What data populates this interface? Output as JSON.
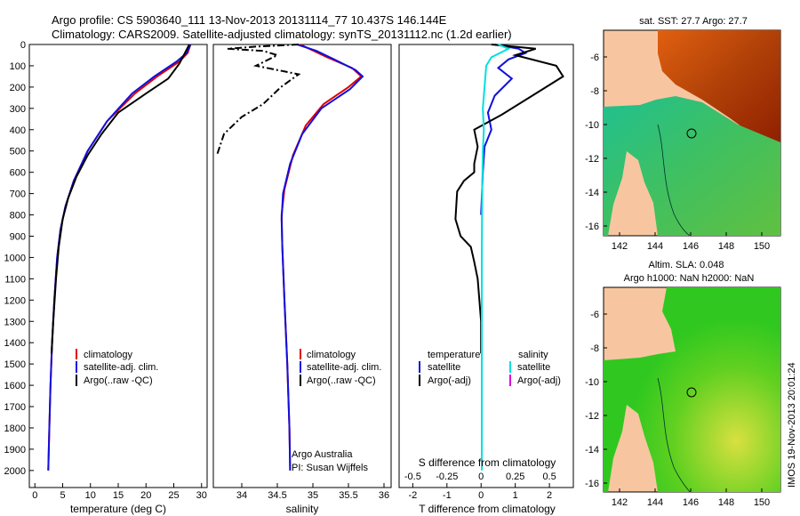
{
  "header": {
    "line1": "Argo profile: CS 5903640_111 13-Nov-2013 20131114_77 10.437S 146.144E",
    "line2": "Climatology: CARS2009. Satellite-adjusted climatology: synTS_20131112.nc (1.2d earlier)"
  },
  "colors": {
    "climatology": "#e00000",
    "satellite": "#1010e0",
    "argo": "#000000",
    "salinity_sat": "#00e0e0",
    "salinity_argo": "#e000e0"
  },
  "depth_axis": {
    "ticks": [
      0,
      100,
      200,
      300,
      400,
      500,
      600,
      700,
      800,
      900,
      1000,
      1100,
      1200,
      1300,
      1400,
      1500,
      1600,
      1700,
      1800,
      1900,
      2000
    ]
  },
  "chart_data": [
    {
      "type": "line",
      "panel": "temperature",
      "xlabel": "temperature (deg C)",
      "xlim": [
        -1,
        31
      ],
      "ylim": [
        0,
        2080
      ],
      "xticks": [
        0,
        5,
        10,
        15,
        20,
        25,
        30
      ],
      "legend": [
        "climatology",
        "satellite-adj. clim.",
        "Argo(..raw -QC)"
      ],
      "series": [
        {
          "name": "climatology",
          "color": "#e00000",
          "points": [
            [
              28,
              0
            ],
            [
              27.5,
              40
            ],
            [
              26,
              80
            ],
            [
              22,
              150
            ],
            [
              18,
              230
            ],
            [
              13,
              360
            ],
            [
              9.5,
              500
            ],
            [
              7,
              640
            ],
            [
              5.5,
              760
            ],
            [
              4.6,
              870
            ],
            [
              4,
              1000
            ],
            [
              3.5,
              1200
            ],
            [
              3.1,
              1400
            ],
            [
              2.8,
              1600
            ],
            [
              2.6,
              1800
            ],
            [
              2.4,
              2000
            ]
          ]
        },
        {
          "name": "satellite-adj. clim.",
          "color": "#1010e0",
          "points": [
            [
              28,
              0
            ],
            [
              27.3,
              40
            ],
            [
              25.5,
              80
            ],
            [
              21.5,
              150
            ],
            [
              17.5,
              230
            ],
            [
              13,
              360
            ],
            [
              9.5,
              500
            ],
            [
              7,
              640
            ],
            [
              5.5,
              760
            ],
            [
              4.6,
              870
            ],
            [
              4,
              1000
            ],
            [
              3.5,
              1200
            ],
            [
              3.1,
              1400
            ],
            [
              2.8,
              1600
            ],
            [
              2.6,
              1800
            ],
            [
              2.4,
              2000
            ]
          ]
        },
        {
          "name": "Argo(..raw -QC)",
          "color": "#000000",
          "points": [
            [
              27.8,
              0
            ],
            [
              27,
              40
            ],
            [
              26,
              90
            ],
            [
              24,
              160
            ],
            [
              20,
              230
            ],
            [
              15,
              320
            ],
            [
              12,
              420
            ],
            [
              9.5,
              520
            ],
            [
              7.5,
              620
            ],
            [
              6,
              720
            ],
            [
              5,
              820
            ],
            [
              4.3,
              950
            ],
            [
              3.8,
              1100
            ],
            [
              3.3,
              1300
            ],
            [
              3,
              1450
            ]
          ]
        }
      ]
    },
    {
      "type": "line",
      "panel": "salinity",
      "xlabel": "salinity",
      "xlim": [
        33.6,
        36.1
      ],
      "ylim": [
        0,
        2080
      ],
      "xticks": [
        34,
        34.5,
        35,
        35.5,
        36
      ],
      "legend": [
        "climatology",
        "satellite-adj. clim.",
        "Argo(..raw -QC)"
      ],
      "annotation": [
        "Argo Australia",
        "PI: Susan Wijffels"
      ],
      "series": [
        {
          "name": "climatology",
          "color": "#e00000",
          "points": [
            [
              34.82,
              0
            ],
            [
              34.95,
              20
            ],
            [
              35.2,
              60
            ],
            [
              35.55,
              110
            ],
            [
              35.68,
              150
            ],
            [
              35.5,
              200
            ],
            [
              35.15,
              280
            ],
            [
              34.9,
              380
            ],
            [
              34.72,
              520
            ],
            [
              34.6,
              680
            ],
            [
              34.56,
              800
            ],
            [
              34.57,
              950
            ],
            [
              34.6,
              1200
            ],
            [
              34.64,
              1500
            ],
            [
              34.67,
              1800
            ],
            [
              34.68,
              2000
            ]
          ]
        },
        {
          "name": "satellite-adj. clim.",
          "color": "#1010e0",
          "points": [
            [
              34.78,
              0
            ],
            [
              35.05,
              30
            ],
            [
              35.3,
              70
            ],
            [
              35.6,
              120
            ],
            [
              35.7,
              150
            ],
            [
              35.52,
              210
            ],
            [
              35.12,
              300
            ],
            [
              34.85,
              420
            ],
            [
              34.68,
              560
            ],
            [
              34.58,
              700
            ],
            [
              34.56,
              820
            ],
            [
              34.57,
              950
            ],
            [
              34.6,
              1200
            ],
            [
              34.64,
              1500
            ],
            [
              34.67,
              1800
            ],
            [
              34.68,
              2000
            ]
          ]
        },
        {
          "name": "Argo(..raw -QC)",
          "color": "#000000",
          "dashed": true,
          "points": [
            [
              34.8,
              0
            ],
            [
              34.2,
              10
            ],
            [
              33.8,
              20
            ],
            [
              34.3,
              30
            ],
            [
              34.5,
              50
            ],
            [
              34.2,
              100
            ],
            [
              34.8,
              140
            ],
            [
              34.55,
              200
            ],
            [
              34.3,
              280
            ],
            [
              34.0,
              340
            ],
            [
              33.75,
              420
            ],
            [
              33.65,
              520
            ]
          ]
        }
      ]
    },
    {
      "type": "line",
      "panel": "difference",
      "xlabel": "T difference from climatology",
      "x2label": "S difference from climatology",
      "xlim": [
        -2.4,
        2.7
      ],
      "ylim": [
        0,
        2080
      ],
      "xticks": [
        -2,
        -1,
        0,
        1,
        2
      ],
      "x2ticks": [
        {
          "label": "-0.5",
          "t": -2
        },
        {
          "label": "-0.25",
          "t": -1
        },
        {
          "label": "0",
          "t": 0
        },
        {
          "label": "0.25",
          "t": 1
        },
        {
          "label": "0.5",
          "t": 2
        }
      ],
      "legend": {
        "temperature": [
          "satellite",
          "Argo(-adj)"
        ],
        "salinity": [
          "satellite",
          "Argo(-adj)"
        ]
      },
      "series": [
        {
          "name": "temperature satellite",
          "color": "#1010e0",
          "points": [
            [
              0.4,
              0
            ],
            [
              1.1,
              20
            ],
            [
              1.3,
              40
            ],
            [
              0.8,
              70
            ],
            [
              0.5,
              110
            ],
            [
              0.9,
              160
            ],
            [
              0.4,
              240
            ],
            [
              0.2,
              320
            ],
            [
              0.3,
              400
            ],
            [
              0.1,
              480
            ],
            [
              0.05,
              600
            ],
            [
              0,
              800
            ]
          ]
        },
        {
          "name": "temperature Argo(-adj)",
          "color": "#000000",
          "points": [
            [
              0.3,
              0
            ],
            [
              1.6,
              20
            ],
            [
              1.0,
              50
            ],
            [
              2.2,
              100
            ],
            [
              2.4,
              150
            ],
            [
              1.6,
              230
            ],
            [
              0.6,
              330
            ],
            [
              -0.2,
              400
            ],
            [
              -0.1,
              480
            ],
            [
              -0.2,
              560
            ],
            [
              -0.2,
              600
            ],
            [
              -0.5,
              640
            ],
            [
              -0.7,
              690
            ],
            [
              -0.75,
              820
            ],
            [
              -0.6,
              900
            ],
            [
              -0.3,
              950
            ],
            [
              -0.2,
              1020
            ],
            [
              -0.1,
              1100
            ],
            [
              -0.05,
              1200
            ],
            [
              0,
              1300
            ],
            [
              0,
              1450
            ]
          ]
        },
        {
          "name": "salinity satellite",
          "color": "#00e0e0",
          "points": [
            [
              0.5,
              0
            ],
            [
              0.8,
              20
            ],
            [
              0.3,
              60
            ],
            [
              0.15,
              100
            ],
            [
              0.1,
              200
            ],
            [
              0.05,
              300
            ],
            [
              0.08,
              400
            ],
            [
              0.05,
              500
            ],
            [
              0.03,
              700
            ],
            [
              0.02,
              1000
            ],
            [
              0.02,
              1300
            ],
            [
              0.02,
              1600
            ],
            [
              0.02,
              1900
            ],
            [
              0.02,
              2000
            ]
          ]
        }
      ]
    }
  ],
  "maps": {
    "sst": {
      "title": "sat. SST: 27.7 Argo: 27.7",
      "xticks": [
        "142",
        "144",
        "146",
        "148",
        "150"
      ],
      "yticks": [
        "-6",
        "-8",
        "-10",
        "-12",
        "-14",
        "-16"
      ]
    },
    "sla": {
      "title1": "Altim. SLA: 0.048",
      "title2": "Argo h1000: NaN h2000: NaN",
      "xticks": [
        "142",
        "144",
        "146",
        "148",
        "150"
      ],
      "yticks": [
        "-6",
        "-8",
        "-10",
        "-12",
        "-14",
        "-16"
      ]
    }
  },
  "footer_stamp": "IMOS 19-Nov-2013 20:01:24"
}
